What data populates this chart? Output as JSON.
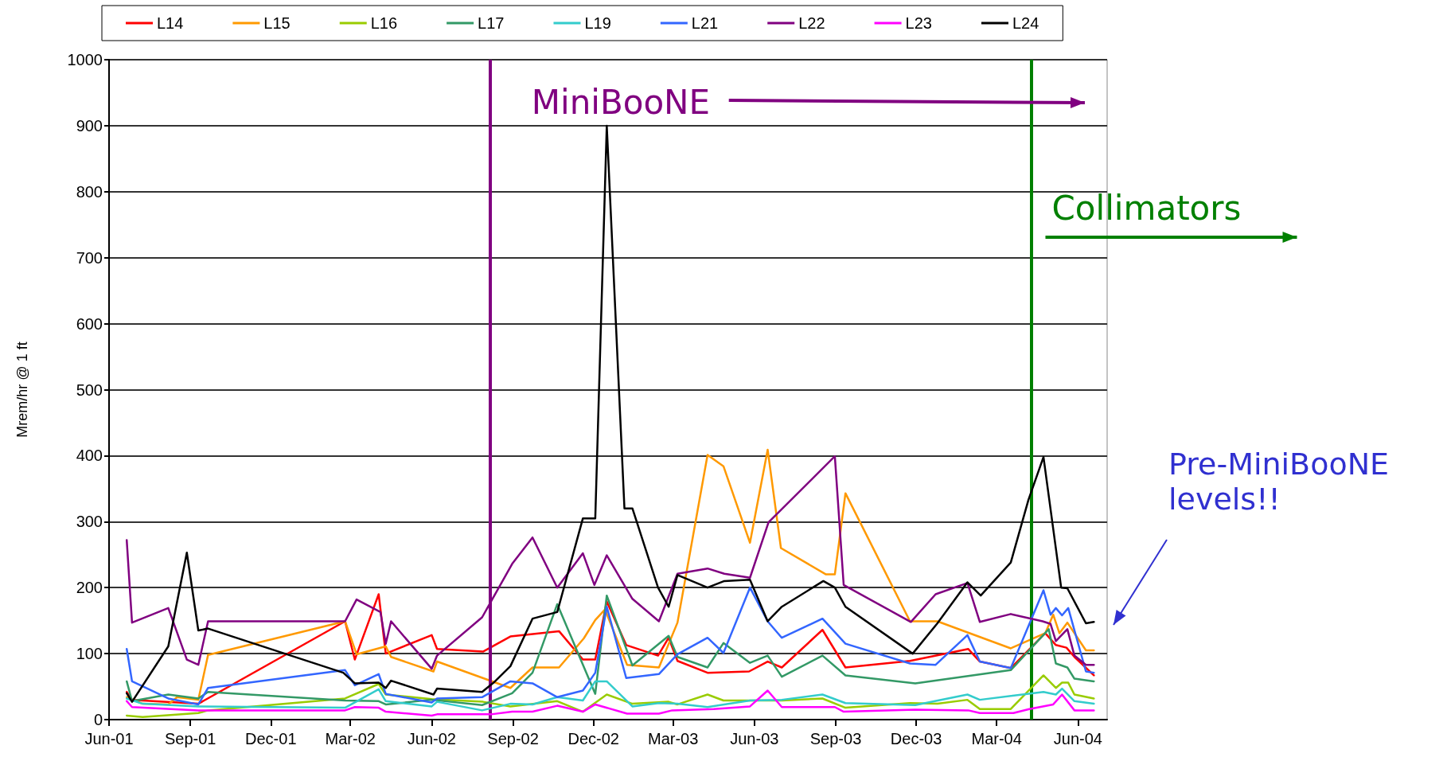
{
  "chart_data": {
    "type": "line",
    "ylabel": "Mrem/hr @ 1 ft",
    "xlim": [
      "2001-06-01",
      "2004-07-04"
    ],
    "xticks": [
      {
        "value": "2001-06-01",
        "label": "Jun-01"
      },
      {
        "value": "2001-09-01",
        "label": "Sep-01"
      },
      {
        "value": "2001-12-01",
        "label": "Dec-01"
      },
      {
        "value": "2002-03-01",
        "label": "Mar-02"
      },
      {
        "value": "2002-06-01",
        "label": "Jun-02"
      },
      {
        "value": "2002-09-01",
        "label": "Sep-02"
      },
      {
        "value": "2002-12-01",
        "label": "Dec-02"
      },
      {
        "value": "2003-03-01",
        "label": "Mar-03"
      },
      {
        "value": "2003-06-01",
        "label": "Jun-03"
      },
      {
        "value": "2003-09-01",
        "label": "Sep-03"
      },
      {
        "value": "2003-12-01",
        "label": "Dec-03"
      },
      {
        "value": "2004-03-01",
        "label": "Mar-04"
      },
      {
        "value": "2004-06-01",
        "label": "Jun-04"
      }
    ],
    "ylim": [
      0,
      1000
    ],
    "yticks": [
      0,
      100,
      200,
      300,
      400,
      500,
      600,
      700,
      800,
      900,
      1000
    ],
    "grid": "y",
    "legend": "top",
    "marker": "none",
    "line_style": "solid",
    "series": [
      {
        "name": "L14",
        "color": "#ff0000",
        "x": [
          "2001-06-21",
          "2001-06-27",
          "2001-09-10",
          "2002-02-23",
          "2002-03-06",
          "2002-04-02",
          "2002-04-10",
          "2002-06-01",
          "2002-06-07",
          "2002-07-29",
          "2002-08-29",
          "2002-10-23",
          "2002-11-19",
          "2002-12-03",
          "2002-12-16",
          "2003-01-07",
          "2003-02-12",
          "2003-02-24",
          "2003-03-06",
          "2003-04-09",
          "2003-05-26",
          "2003-06-16",
          "2003-07-02",
          "2003-08-17",
          "2003-09-12",
          "2003-11-24",
          "2004-01-29",
          "2004-02-11",
          "2004-03-17",
          "2004-04-25",
          "2004-05-07",
          "2004-05-19",
          "2004-05-28",
          "2004-06-19"
        ],
        "values": [
          42,
          30,
          24,
          149,
          91,
          190,
          100,
          128,
          107,
          103,
          126,
          134,
          91,
          91,
          179,
          113,
          97,
          124,
          89,
          71,
          73,
          88,
          79,
          136,
          79,
          89,
          107,
          88,
          78,
          131,
          113,
          109,
          95,
          67
        ]
      },
      {
        "name": "L15",
        "color": "#ff9900",
        "x": [
          "2001-06-21",
          "2001-07-09",
          "2001-08-07",
          "2001-08-17",
          "2001-09-10",
          "2001-09-21",
          "2002-02-23",
          "2002-03-08",
          "2002-04-10",
          "2002-04-16",
          "2002-06-03",
          "2002-06-07",
          "2002-08-29",
          "2002-09-23",
          "2002-10-23",
          "2002-11-20",
          "2002-12-03",
          "2002-12-14",
          "2003-01-08",
          "2003-02-13",
          "2003-03-06",
          "2003-04-09",
          "2003-04-27",
          "2003-05-27",
          "2003-06-16",
          "2003-07-01",
          "2003-08-21",
          "2003-08-31",
          "2003-09-12",
          "2003-11-24",
          "2003-12-25",
          "2004-03-17",
          "2004-04-25",
          "2004-05-04",
          "2004-05-11",
          "2004-05-20",
          "2004-06-10",
          "2004-06-19"
        ],
        "values": [
          34,
          24,
          23,
          34,
          30,
          98,
          149,
          99,
          111,
          95,
          73,
          88,
          48,
          79,
          79,
          123,
          151,
          167,
          83,
          79,
          147,
          401,
          384,
          268,
          409,
          260,
          220,
          220,
          343,
          149,
          149,
          108,
          131,
          159,
          131,
          147,
          105,
          105
        ]
      },
      {
        "name": "L16",
        "color": "#99cc00",
        "x": [
          "2001-06-21",
          "2001-07-09",
          "2001-09-10",
          "2001-09-21",
          "2002-02-23",
          "2002-04-02",
          "2002-04-10",
          "2002-06-01",
          "2002-07-29",
          "2002-08-29",
          "2002-10-21",
          "2002-11-19",
          "2002-12-16",
          "2003-01-14",
          "2003-02-24",
          "2003-03-06",
          "2003-04-09",
          "2003-04-27",
          "2003-07-02",
          "2003-08-17",
          "2003-09-12",
          "2003-11-24",
          "2003-12-25",
          "2004-01-28",
          "2004-02-11",
          "2004-03-17",
          "2004-04-23",
          "2004-05-07",
          "2004-05-14",
          "2004-05-21",
          "2004-05-28",
          "2004-06-19"
        ],
        "values": [
          6,
          4,
          10,
          14,
          32,
          54,
          38,
          31,
          27,
          20,
          28,
          12,
          38,
          24,
          27,
          23,
          38,
          29,
          29,
          32,
          18,
          25,
          24,
          30,
          16,
          16,
          67,
          48,
          56,
          56,
          38,
          32
        ]
      },
      {
        "name": "L17",
        "color": "#339966",
        "x": [
          "2001-06-21",
          "2001-06-27",
          "2001-08-07",
          "2001-09-10",
          "2001-09-21",
          "2002-02-23",
          "2002-04-02",
          "2002-04-10",
          "2002-06-01",
          "2002-07-28",
          "2002-08-31",
          "2002-09-23",
          "2002-10-21",
          "2002-12-03",
          "2002-12-16",
          "2003-01-14",
          "2003-02-24",
          "2003-03-06",
          "2003-04-09",
          "2003-04-27",
          "2003-05-27",
          "2003-06-16",
          "2003-07-02",
          "2003-08-17",
          "2003-09-12",
          "2003-11-30",
          "2004-03-17",
          "2004-04-29",
          "2004-05-07",
          "2004-05-20",
          "2004-05-28",
          "2004-06-19"
        ],
        "values": [
          58,
          28,
          38,
          32,
          42,
          29,
          28,
          23,
          30,
          22,
          40,
          71,
          175,
          39,
          188,
          82,
          127,
          95,
          79,
          116,
          86,
          97,
          65,
          97,
          67,
          55,
          75,
          137,
          85,
          79,
          62,
          58
        ]
      },
      {
        "name": "L19",
        "color": "#33cccc",
        "x": [
          "2001-06-21",
          "2001-07-09",
          "2001-09-10",
          "2002-02-23",
          "2002-04-02",
          "2002-04-10",
          "2002-06-01",
          "2002-06-07",
          "2002-07-28",
          "2002-08-29",
          "2002-09-23",
          "2002-10-21",
          "2002-11-19",
          "2002-12-03",
          "2002-12-16",
          "2003-01-14",
          "2003-02-13",
          "2003-03-06",
          "2003-04-09",
          "2003-05-27",
          "2003-07-02",
          "2003-08-17",
          "2003-09-12",
          "2003-11-30",
          "2004-01-28",
          "2004-02-11",
          "2004-04-23",
          "2004-05-07",
          "2004-05-14",
          "2004-05-28",
          "2004-06-19"
        ],
        "values": [
          32,
          24,
          20,
          18,
          46,
          28,
          20,
          27,
          14,
          24,
          23,
          34,
          29,
          58,
          58,
          20,
          25,
          24,
          19,
          29,
          30,
          38,
          25,
          22,
          38,
          30,
          42,
          38,
          47,
          28,
          24
        ]
      },
      {
        "name": "L21",
        "color": "#3366ff",
        "x": [
          "2001-06-21",
          "2001-06-27",
          "2001-08-07",
          "2001-09-10",
          "2001-09-21",
          "2002-02-23",
          "2002-03-06",
          "2002-04-02",
          "2002-04-10",
          "2002-06-01",
          "2002-06-07",
          "2002-07-28",
          "2002-08-29",
          "2002-09-23",
          "2002-10-21",
          "2002-11-19",
          "2002-12-03",
          "2002-12-16",
          "2003-01-07",
          "2003-02-13",
          "2003-03-06",
          "2003-04-09",
          "2003-04-27",
          "2003-05-27",
          "2003-06-16",
          "2003-07-02",
          "2003-08-17",
          "2003-09-12",
          "2003-11-24",
          "2003-12-23",
          "2004-01-28",
          "2004-02-11",
          "2004-03-17",
          "2004-04-23",
          "2004-05-01",
          "2004-05-07",
          "2004-05-14",
          "2004-05-21",
          "2004-06-10",
          "2004-06-19"
        ],
        "values": [
          107,
          58,
          32,
          23,
          48,
          75,
          52,
          69,
          39,
          26,
          32,
          34,
          58,
          55,
          34,
          44,
          71,
          171,
          63,
          69,
          99,
          124,
          101,
          200,
          149,
          124,
          153,
          115,
          85,
          83,
          128,
          88,
          78,
          196,
          159,
          169,
          158,
          169,
          73,
          71
        ]
      },
      {
        "name": "L22",
        "color": "#800080",
        "x": [
          "2001-06-21",
          "2001-06-27",
          "2001-08-07",
          "2001-08-28",
          "2001-09-10",
          "2001-09-21",
          "2002-02-23",
          "2002-03-08",
          "2002-04-04",
          "2002-04-10",
          "2002-04-16",
          "2002-06-01",
          "2002-06-07",
          "2002-07-28",
          "2002-08-31",
          "2002-09-23",
          "2002-10-21",
          "2002-11-19",
          "2002-12-02",
          "2002-12-16",
          "2003-01-14",
          "2003-02-13",
          "2003-03-06",
          "2003-04-09",
          "2003-04-28",
          "2003-05-27",
          "2003-06-17",
          "2003-08-31",
          "2003-09-10",
          "2003-11-25",
          "2003-12-23",
          "2004-01-28",
          "2004-02-11",
          "2004-03-17",
          "2004-04-22",
          "2004-05-01",
          "2004-05-07",
          "2004-05-20",
          "2004-05-28",
          "2004-06-10",
          "2004-06-19"
        ],
        "values": [
          272,
          147,
          169,
          91,
          83,
          149,
          149,
          182,
          163,
          115,
          149,
          77,
          97,
          155,
          236,
          276,
          200,
          252,
          204,
          249,
          183,
          149,
          221,
          229,
          221,
          215,
          299,
          399,
          204,
          148,
          190,
          207,
          148,
          160,
          149,
          145,
          119,
          137,
          97,
          83,
          83
        ]
      },
      {
        "name": "L23",
        "color": "#ff00ff",
        "x": [
          "2001-06-21",
          "2001-06-27",
          "2001-09-10",
          "2002-02-23",
          "2002-03-06",
          "2002-04-02",
          "2002-04-10",
          "2002-06-01",
          "2002-06-07",
          "2002-08-07",
          "2002-08-31",
          "2002-09-23",
          "2002-10-21",
          "2002-11-19",
          "2002-12-03",
          "2003-01-08",
          "2003-02-13",
          "2003-02-28",
          "2003-04-16",
          "2003-05-27",
          "2003-06-16",
          "2003-07-02",
          "2003-08-31",
          "2003-09-10",
          "2003-11-30",
          "2004-01-29",
          "2004-02-11",
          "2004-03-20",
          "2004-04-07",
          "2004-05-04",
          "2004-05-14",
          "2004-05-28",
          "2004-06-19"
        ],
        "values": [
          28,
          19,
          14,
          14,
          19,
          18,
          12,
          6,
          8,
          8,
          12,
          12,
          21,
          12,
          23,
          9,
          9,
          14,
          16,
          20,
          44,
          19,
          19,
          12,
          15,
          14,
          10,
          10,
          16,
          23,
          38,
          14,
          14
        ]
      },
      {
        "name": "L24",
        "color": "#000000",
        "x": [
          "2001-06-21",
          "2001-06-27",
          "2001-08-07",
          "2001-08-28",
          "2001-09-10",
          "2001-09-21",
          "2002-02-21",
          "2002-03-06",
          "2002-04-02",
          "2002-04-10",
          "2002-04-16",
          "2002-06-03",
          "2002-06-07",
          "2002-07-28",
          "2002-08-10",
          "2002-08-29",
          "2002-09-23",
          "2002-10-21",
          "2002-11-19",
          "2002-12-03",
          "2002-12-16",
          "2003-01-05",
          "2003-01-14",
          "2003-02-12",
          "2003-02-24",
          "2003-03-06",
          "2003-04-09",
          "2003-04-28",
          "2003-05-27",
          "2003-06-16",
          "2003-07-02",
          "2003-08-18",
          "2003-08-31",
          "2003-09-12",
          "2003-11-27",
          "2003-12-25",
          "2004-01-28",
          "2004-02-12",
          "2004-03-17",
          "2004-04-06",
          "2004-04-23",
          "2004-05-13",
          "2004-05-20",
          "2004-06-10",
          "2004-06-19"
        ],
        "values": [
          40,
          27,
          111,
          253,
          135,
          138,
          71,
          55,
          56,
          48,
          59,
          38,
          47,
          42,
          56,
          81,
          153,
          163,
          305,
          305,
          900,
          320,
          320,
          200,
          171,
          219,
          200,
          210,
          212,
          149,
          171,
          210,
          200,
          171,
          100,
          146,
          208,
          188,
          238,
          333,
          398,
          200,
          199,
          146,
          148
        ]
      }
    ],
    "ref_lines": [
      {
        "axis": "x",
        "value": "2002-08-06",
        "label": "MiniBooNE",
        "color": "#800080"
      },
      {
        "axis": "x",
        "value": "2004-04-09",
        "label": "Collimators",
        "color": "#008000"
      }
    ],
    "annotations": [
      "Pre-MiniBooNE levels!!"
    ]
  }
}
